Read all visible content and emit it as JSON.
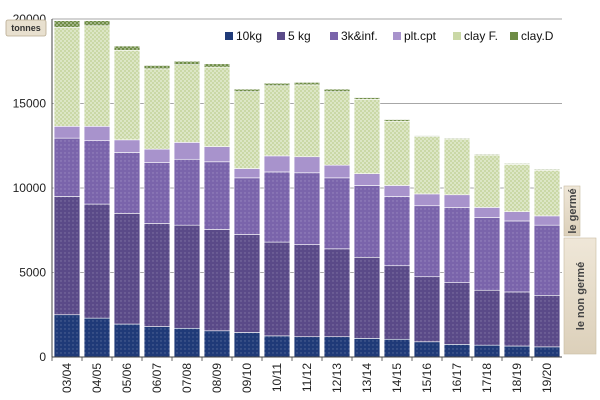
{
  "chart_data": {
    "type": "bar",
    "stacked": true,
    "unit": "tonnes",
    "categories": [
      "03/04",
      "04/05",
      "05/06",
      "06/07",
      "07/08",
      "08/09",
      "09/10",
      "10/11",
      "11/12",
      "12/13",
      "13/14",
      "14/15",
      "15/16",
      "16/17",
      "17/18",
      "18/19",
      "19/20"
    ],
    "series": [
      {
        "name": "10kg",
        "color": "#1f3a78",
        "values": [
          2500,
          2300,
          1950,
          1800,
          1700,
          1550,
          1450,
          1250,
          1200,
          1200,
          1100,
          1050,
          900,
          750,
          700,
          650,
          600
        ]
      },
      {
        "name": "5 kg",
        "color": "#5a4a88",
        "values": [
          7000,
          6750,
          6550,
          6100,
          6100,
          6000,
          5800,
          5550,
          5450,
          5200,
          4800,
          4350,
          3850,
          3650,
          3250,
          3200,
          3050
        ]
      },
      {
        "name": "3k&inf.",
        "color": "#7a64ab",
        "values": [
          3450,
          3750,
          3600,
          3600,
          3900,
          4000,
          3350,
          4150,
          4250,
          4200,
          4250,
          4100,
          4200,
          4450,
          4300,
          4200,
          4150
        ]
      },
      {
        "name": "plt.cpt",
        "color": "#a893cc",
        "values": [
          700,
          850,
          750,
          800,
          1000,
          900,
          550,
          950,
          950,
          750,
          700,
          650,
          700,
          750,
          600,
          550,
          550
        ]
      },
      {
        "name": "clay F.",
        "color": "#cad8a6",
        "values": [
          5850,
          5950,
          5300,
          4750,
          4600,
          4700,
          4550,
          4150,
          4250,
          4350,
          4400,
          3800,
          3400,
          3300,
          3100,
          2800,
          2700
        ]
      },
      {
        "name": "clay.D",
        "color": "#6e8c45",
        "values": [
          400,
          300,
          250,
          200,
          200,
          200,
          150,
          150,
          150,
          150,
          100,
          100,
          50,
          50,
          50,
          50,
          50
        ]
      }
    ],
    "ylim": [
      0,
      20000
    ],
    "yticks": [
      0,
      5000,
      10000,
      15000,
      20000
    ],
    "grid": "horizontal",
    "legend_position": "top-right",
    "side_labels": {
      "top": "le germé",
      "bottom": "le non germé"
    }
  }
}
